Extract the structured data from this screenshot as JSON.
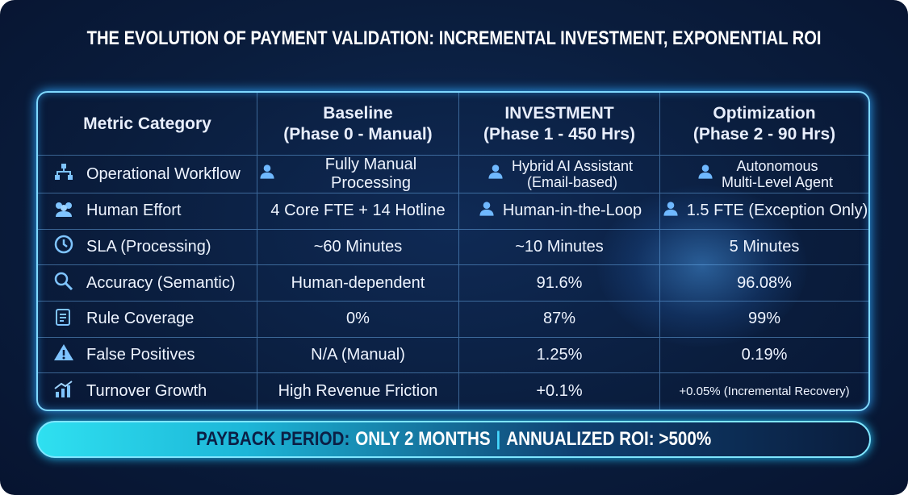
{
  "title": "THE EVOLUTION OF PAYMENT VALIDATION: INCREMENTAL INVESTMENT, EXPONENTIAL ROI",
  "table": {
    "header": [
      {
        "title": "Metric Category"
      },
      {
        "title": "Baseline",
        "subtitle": "(Phase 0 - Manual)"
      },
      {
        "title": "INVESTMENT",
        "subtitle": "(Phase 1 - 450 Hrs)"
      },
      {
        "title": "Optimization",
        "subtitle": "(Phase 2 - 90 Hrs)"
      }
    ],
    "rows": [
      [
        "Operational Workflow",
        "Fully Manual Processing",
        [
          "Hybrid AI Assistant",
          "(Email-based)"
        ],
        [
          "Autonomous",
          "Multi-Level Agent"
        ]
      ],
      [
        "Human Effort",
        "4 Core FTE + 14 Hotline",
        "Human-in-the-Loop",
        "1.5 FTE (Exception Only)"
      ],
      [
        "SLA (Processing)",
        "~60 Minutes",
        "~10 Minutes",
        "5 Minutes"
      ],
      [
        "Accuracy (Semantic)",
        "Human-dependent",
        "91.6%",
        "96.08%"
      ],
      [
        "Rule Coverage",
        "0%",
        "87%",
        "99%"
      ],
      [
        "False Positives",
        "N/A (Manual)",
        "1.25%",
        "0.19%"
      ],
      [
        "Turnover Growth",
        "High Revenue Friction",
        "+0.1%",
        "+0.05% (Incremental Recovery)"
      ]
    ]
  },
  "banner": [
    "PAYBACK PERIOD:",
    "ONLY 2 MONTHS",
    "|",
    "ANNUALIZED ROI: >500%"
  ]
}
